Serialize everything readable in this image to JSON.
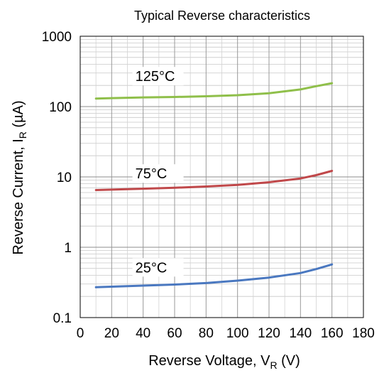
{
  "chart_data": {
    "type": "line",
    "title": "Typical Reverse characteristics",
    "xlabel": {
      "main": "Reverse Voltage, V",
      "sub": "R",
      "unit": " (V)"
    },
    "ylabel": {
      "main": "Reverse Current, I",
      "sub": "R",
      "unit": " (µA)"
    },
    "x_scale": "linear",
    "y_scale": "log",
    "xlim": [
      0,
      180
    ],
    "ylim": [
      0.1,
      1000
    ],
    "x_ticks": [
      0,
      20,
      40,
      60,
      80,
      100,
      120,
      140,
      160,
      180
    ],
    "x_tick_labels": [
      "0",
      "20",
      "40",
      "60",
      "80",
      "100",
      "120",
      "140",
      "160",
      "180"
    ],
    "y_ticks": [
      0.1,
      1,
      10,
      100,
      1000
    ],
    "y_tick_labels": [
      "0.1",
      "1",
      "10",
      "100",
      "1000"
    ],
    "grid": true,
    "series": [
      {
        "name": "125°C",
        "color": "#8fbf4a",
        "label_at": [
          35,
          230
        ],
        "x": [
          10,
          20,
          40,
          60,
          80,
          100,
          120,
          140,
          150,
          160
        ],
        "y": [
          130,
          132,
          135,
          137,
          140,
          145,
          155,
          175,
          195,
          215
        ]
      },
      {
        "name": "75°C",
        "color": "#c0484a",
        "label_at": [
          35,
          9.5
        ],
        "x": [
          10,
          20,
          40,
          60,
          80,
          100,
          120,
          140,
          150,
          160
        ],
        "y": [
          6.5,
          6.6,
          6.8,
          7.0,
          7.3,
          7.7,
          8.4,
          9.5,
          10.6,
          12.2
        ]
      },
      {
        "name": "25°C",
        "color": "#4a78c0",
        "label_at": [
          35,
          0.44
        ],
        "x": [
          10,
          20,
          40,
          60,
          80,
          100,
          120,
          140,
          150,
          160
        ],
        "y": [
          0.27,
          0.275,
          0.285,
          0.295,
          0.31,
          0.335,
          0.37,
          0.43,
          0.49,
          0.57
        ]
      }
    ]
  }
}
